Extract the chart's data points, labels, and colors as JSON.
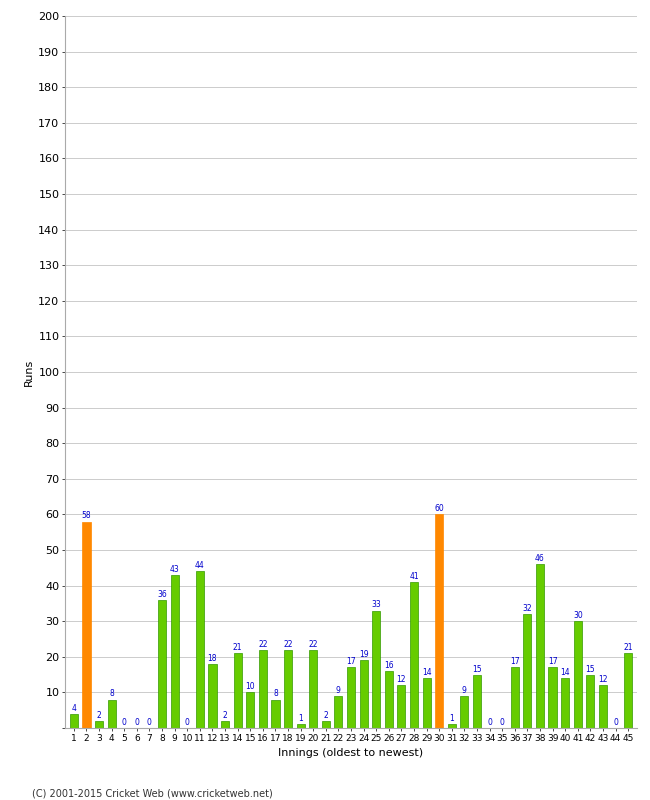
{
  "innings": [
    1,
    2,
    3,
    4,
    5,
    6,
    7,
    8,
    9,
    10,
    11,
    12,
    13,
    14,
    15,
    16,
    17,
    18,
    19,
    20,
    21,
    22,
    23,
    24,
    25,
    26,
    27,
    28,
    29,
    30,
    31,
    32,
    33,
    34,
    35,
    36,
    37,
    38,
    39,
    40,
    41,
    42,
    43,
    44,
    45
  ],
  "values": [
    4,
    58,
    2,
    8,
    0,
    0,
    0,
    36,
    43,
    0,
    44,
    18,
    2,
    21,
    10,
    22,
    8,
    22,
    1,
    22,
    2,
    9,
    17,
    19,
    33,
    16,
    12,
    41,
    14,
    60,
    1,
    9,
    15,
    0,
    0,
    17,
    32,
    46,
    17,
    14,
    30,
    15,
    12,
    0,
    21
  ],
  "highlight": [
    false,
    true,
    false,
    false,
    false,
    false,
    false,
    false,
    false,
    false,
    false,
    false,
    false,
    false,
    false,
    false,
    false,
    false,
    false,
    false,
    false,
    false,
    false,
    false,
    false,
    false,
    false,
    false,
    false,
    true,
    false,
    false,
    false,
    false,
    false,
    false,
    false,
    false,
    false,
    false,
    false,
    false,
    false,
    false,
    false
  ],
  "bar_color_normal": "#66cc00",
  "bar_color_highlight": "#ff8800",
  "bar_edge_color": "#339900",
  "ylim": [
    0,
    200
  ],
  "yticks": [
    0,
    10,
    20,
    30,
    40,
    50,
    60,
    70,
    80,
    90,
    100,
    110,
    120,
    130,
    140,
    150,
    160,
    170,
    180,
    190,
    200
  ],
  "ylabel": "Runs",
  "xlabel": "Innings (oldest to newest)",
  "grid_color": "#cccccc",
  "label_color": "#0000cc",
  "background_color": "#ffffff",
  "footer": "(C) 2001-2015 Cricket Web (www.cricketweb.net)"
}
